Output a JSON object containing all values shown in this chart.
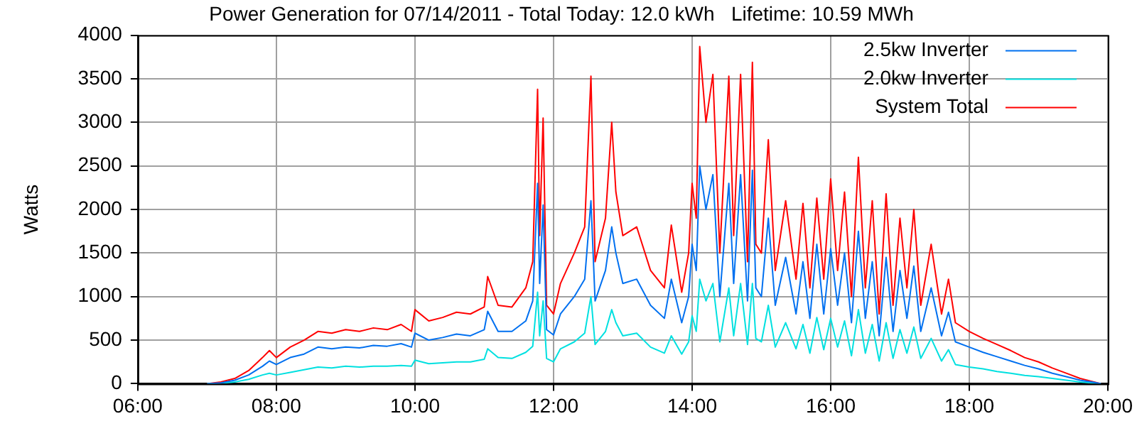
{
  "chart_data": {
    "type": "line",
    "title": "Power Generation for 07/14/2011 - Total Today: 12.0 kWh   Lifetime: 10.59 MWh",
    "ylabel": "Watts",
    "x": [
      7.0,
      7.2,
      7.4,
      7.6,
      7.8,
      7.9,
      8.0,
      8.2,
      8.4,
      8.6,
      8.8,
      9.0,
      9.2,
      9.4,
      9.6,
      9.8,
      9.95,
      10.0,
      10.2,
      10.4,
      10.6,
      10.8,
      11.0,
      11.05,
      11.2,
      11.4,
      11.6,
      11.7,
      11.77,
      11.8,
      11.85,
      11.9,
      12.0,
      12.1,
      12.3,
      12.45,
      12.54,
      12.6,
      12.75,
      12.84,
      12.9,
      13.0,
      13.2,
      13.4,
      13.6,
      13.7,
      13.85,
      13.95,
      14.0,
      14.06,
      14.11,
      14.2,
      14.3,
      14.4,
      14.53,
      14.6,
      14.7,
      14.8,
      14.87,
      14.92,
      15.0,
      15.1,
      15.2,
      15.35,
      15.5,
      15.6,
      15.7,
      15.8,
      15.9,
      16.0,
      16.1,
      16.2,
      16.3,
      16.4,
      16.5,
      16.6,
      16.7,
      16.8,
      16.9,
      17.0,
      17.1,
      17.2,
      17.3,
      17.45,
      17.6,
      17.7,
      17.8,
      18.0,
      18.2,
      18.4,
      18.6,
      18.8,
      19.0,
      19.2,
      19.4,
      19.6,
      19.8,
      19.9
    ],
    "series": [
      {
        "name": "2.5kw Inverter",
        "color": "#0070f0",
        "values": [
          0,
          10,
          40,
          100,
          200,
          260,
          220,
          300,
          340,
          420,
          400,
          420,
          410,
          440,
          430,
          460,
          420,
          580,
          500,
          530,
          570,
          550,
          620,
          830,
          600,
          600,
          720,
          950,
          2300,
          1150,
          2050,
          620,
          560,
          800,
          1000,
          1200,
          2100,
          950,
          1300,
          1800,
          1500,
          1150,
          1200,
          900,
          750,
          1200,
          700,
          1000,
          1600,
          1300,
          2500,
          2000,
          2400,
          1000,
          2300,
          1150,
          2400,
          950,
          2450,
          1100,
          1000,
          1900,
          900,
          1450,
          800,
          1400,
          750,
          1600,
          800,
          1550,
          900,
          1500,
          700,
          1750,
          750,
          1400,
          550,
          1450,
          600,
          1300,
          750,
          1350,
          600,
          1100,
          550,
          820,
          480,
          420,
          360,
          310,
          260,
          210,
          170,
          120,
          80,
          40,
          15,
          0
        ]
      },
      {
        "name": "2.0kw Inverter",
        "color": "#00e0e0",
        "values": [
          0,
          5,
          20,
          50,
          100,
          120,
          100,
          130,
          160,
          190,
          180,
          200,
          190,
          200,
          200,
          210,
          200,
          270,
          230,
          240,
          250,
          250,
          280,
          400,
          300,
          290,
          360,
          430,
          1050,
          550,
          950,
          290,
          250,
          400,
          480,
          580,
          1000,
          450,
          600,
          850,
          700,
          550,
          580,
          420,
          350,
          550,
          340,
          480,
          780,
          600,
          1200,
          950,
          1150,
          480,
          1100,
          550,
          1150,
          450,
          1150,
          520,
          480,
          900,
          420,
          700,
          400,
          680,
          350,
          760,
          390,
          750,
          420,
          720,
          320,
          850,
          350,
          680,
          260,
          700,
          290,
          620,
          350,
          650,
          290,
          520,
          260,
          390,
          220,
          190,
          170,
          140,
          120,
          95,
          80,
          60,
          40,
          20,
          5,
          0
        ]
      },
      {
        "name": "System Total",
        "color": "#ff0000",
        "values": [
          0,
          20,
          60,
          150,
          300,
          380,
          300,
          420,
          500,
          600,
          580,
          620,
          600,
          640,
          620,
          680,
          600,
          850,
          720,
          760,
          820,
          800,
          880,
          1230,
          900,
          880,
          1100,
          1400,
          3380,
          1700,
          3050,
          900,
          800,
          1150,
          1500,
          1800,
          3530,
          1400,
          1900,
          3000,
          2200,
          1700,
          1800,
          1300,
          1100,
          1820,
          1050,
          1500,
          2300,
          1900,
          3870,
          3000,
          3550,
          1500,
          3530,
          1700,
          3550,
          1400,
          3690,
          1600,
          1500,
          2800,
          1300,
          2100,
          1200,
          2070,
          1100,
          2130,
          1200,
          2350,
          1300,
          2200,
          1000,
          2600,
          1100,
          2100,
          800,
          2180,
          900,
          1900,
          1100,
          2000,
          900,
          1600,
          800,
          1200,
          700,
          600,
          520,
          450,
          380,
          300,
          250,
          180,
          120,
          60,
          20,
          0
        ]
      }
    ],
    "xlim": [
      6,
      20
    ],
    "xticks": [
      {
        "value": 6,
        "label": "06:00"
      },
      {
        "value": 8,
        "label": "08:00"
      },
      {
        "value": 10,
        "label": "10:00"
      },
      {
        "value": 12,
        "label": "12:00"
      },
      {
        "value": 14,
        "label": "14:00"
      },
      {
        "value": 16,
        "label": "16:00"
      },
      {
        "value": 18,
        "label": "18:00"
      },
      {
        "value": 20,
        "label": "20:00"
      }
    ],
    "ylim": [
      0,
      4000
    ],
    "yticks": [
      0,
      500,
      1000,
      1500,
      2000,
      2500,
      3000,
      3500,
      4000
    ],
    "grid": true,
    "legend": "top right",
    "marker": "none",
    "line_style": "solid"
  }
}
